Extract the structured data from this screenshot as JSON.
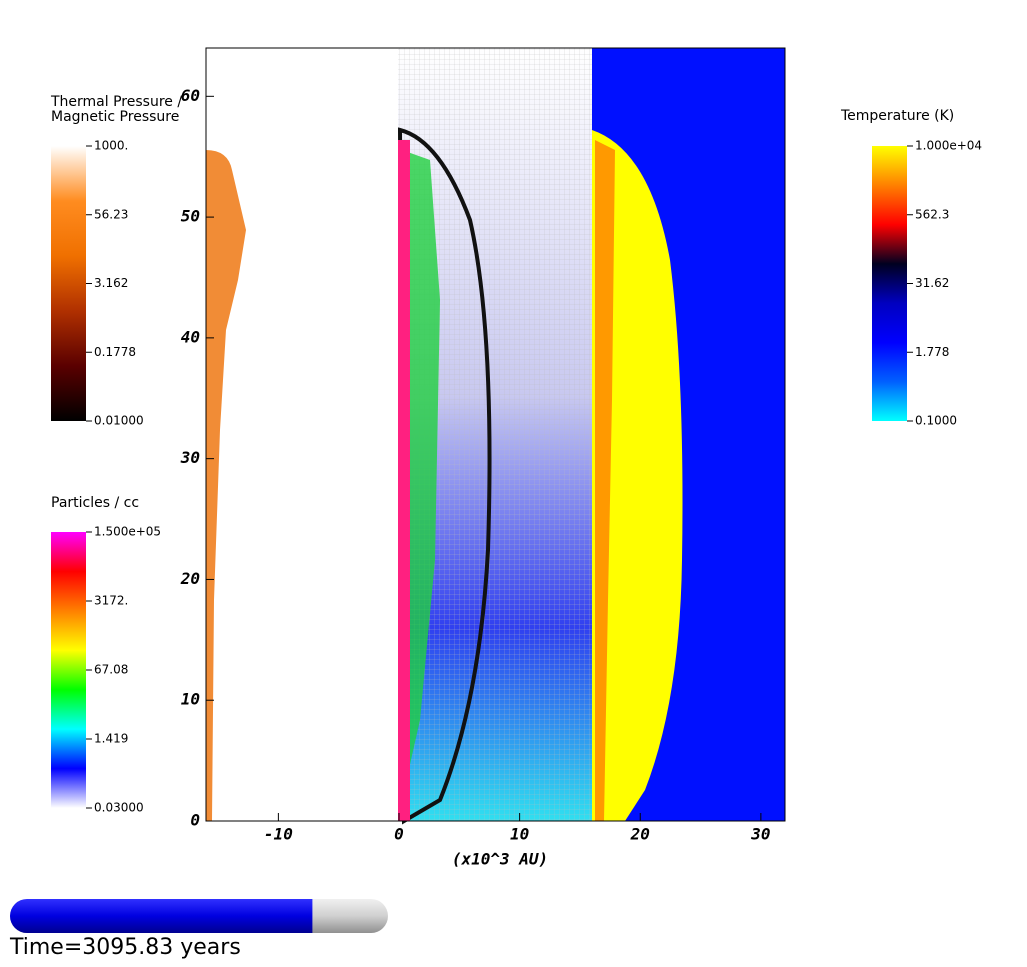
{
  "chart_data": {
    "type": "field",
    "xlabel": "(x10^3 AU)",
    "xlim": [
      -16,
      32
    ],
    "ylim": [
      0,
      64
    ],
    "xticks": [
      -10,
      0,
      10,
      20,
      30
    ],
    "yticks": [
      0,
      10,
      20,
      30,
      40,
      50,
      60
    ],
    "colorbars": [
      {
        "title": "Thermal Pressure /\nMagnetic Pressure",
        "log": true,
        "lim": [
          0.01,
          1000
        ],
        "colors": [
          "#000000",
          "#5a0000",
          "#b03000",
          "#f07000",
          "#ff8c20",
          "#ffffff"
        ],
        "ticks": [
          {
            "value": 1000,
            "label": "1000."
          },
          {
            "value": 56.23,
            "label": "56.23"
          },
          {
            "value": 3.162,
            "label": "3.162"
          },
          {
            "value": 0.1778,
            "label": "0.1778"
          },
          {
            "value": 0.01,
            "label": "0.01000"
          }
        ]
      },
      {
        "title": "Particles / cc",
        "log": true,
        "lim": [
          0.03,
          150000
        ],
        "colors": [
          "#ffffff",
          "#0000ff",
          "#00ffff",
          "#00ff00",
          "#ffff00",
          "#ff8000",
          "#ff0000",
          "#ff00ff"
        ],
        "ticks": [
          {
            "value": 150000,
            "label": "1.500e+05"
          },
          {
            "value": 3172,
            "label": "3172."
          },
          {
            "value": 67.08,
            "label": "67.08"
          },
          {
            "value": 1.419,
            "label": "1.419"
          },
          {
            "value": 0.03,
            "label": "0.03000"
          }
        ]
      },
      {
        "title": "Temperature (K)",
        "log": true,
        "lim": [
          0.1,
          10000
        ],
        "colors": [
          "#00ffff",
          "#0060ff",
          "#0000ff",
          "#0000c0",
          "#000020",
          "#ff0000",
          "#ff8000",
          "#ffff00"
        ],
        "ticks": [
          {
            "value": 10000,
            "label": "1.000e+04"
          },
          {
            "value": 562.3,
            "label": "562.3"
          },
          {
            "value": 31.62,
            "label": "31.62"
          },
          {
            "value": 1.778,
            "label": "1.778"
          },
          {
            "value": 0.1,
            "label": "0.1000"
          }
        ]
      }
    ],
    "time_label": "Time=3095.83 years",
    "time_progress": 0.8
  }
}
